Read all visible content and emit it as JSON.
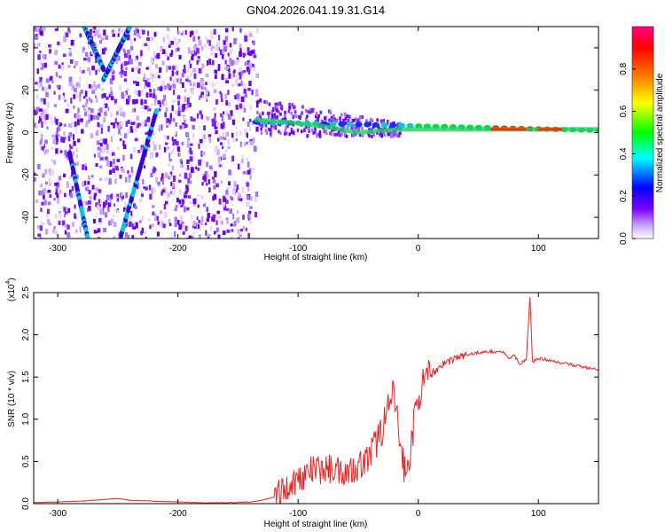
{
  "figure_title": "GN04.2026.041.19.31.G14",
  "chart_data": [
    {
      "type": "heatmap",
      "title": "GN04.2026.041.19.31.G14",
      "xlabel": "Height of straight line (km)",
      "ylabel": "Frequency (Hz)",
      "xlim": [
        -320,
        150
      ],
      "ylim": [
        -50,
        50
      ],
      "xticks": [
        -300,
        -200,
        -100,
        0,
        100
      ],
      "yticks": [
        -40,
        -20,
        0,
        20,
        40
      ],
      "colorbar": {
        "label": "Normalized spectral amplitude",
        "range": [
          0,
          1
        ],
        "ticks": [
          0.0,
          0.2,
          0.4,
          0.6,
          0.8
        ],
        "colors": [
          "#ffffff",
          "#7f00ff",
          "#0000ff",
          "#00ffff",
          "#00ff00",
          "#ffff00",
          "#ff8000",
          "#ff0000",
          "#ff0080"
        ]
      },
      "features": [
        {
          "name": "descending streak",
          "x": [
            -278,
            -262
          ],
          "y": [
            50,
            30
          ]
        },
        {
          "name": "descending streak",
          "x": [
            -290,
            -275
          ],
          "y": [
            -10,
            -50
          ]
        },
        {
          "name": "ascending streak",
          "x": [
            -248,
            -218
          ],
          "y": [
            -50,
            10
          ]
        },
        {
          "name": "ascending streak",
          "x": [
            -262,
            -240
          ],
          "y": [
            25,
            50
          ]
        },
        {
          "name": "noise edge",
          "x": [
            -135,
            -135
          ],
          "y": [
            -50,
            50
          ]
        },
        {
          "name": "signal ridge",
          "x": [
            -135,
            150
          ],
          "y": [
            5,
            1
          ]
        }
      ]
    },
    {
      "type": "line",
      "xlabel": "Height of straight line (km)",
      "ylabel": "SNR (10 * v/v)",
      "y_multiplier": "(x10",
      "y_multiplier_exp": "4",
      "xlim": [
        -320,
        150
      ],
      "ylim": [
        0,
        2.5
      ],
      "xticks": [
        -300,
        -200,
        -100,
        0,
        100
      ],
      "yticks": [
        0.0,
        0.5,
        1.0,
        1.5,
        2.0,
        2.5
      ],
      "color": "#ee2222",
      "x": [
        -320,
        -300,
        -280,
        -260,
        -250,
        -240,
        -220,
        -200,
        -180,
        -160,
        -140,
        -130,
        -120,
        -110,
        -100,
        -90,
        -80,
        -70,
        -60,
        -50,
        -40,
        -30,
        -25,
        -20,
        -15,
        -10,
        -5,
        0,
        10,
        20,
        30,
        40,
        50,
        60,
        70,
        75,
        80,
        85,
        90,
        93,
        95,
        100,
        110,
        120,
        130,
        140,
        150
      ],
      "y": [
        0.01,
        0.02,
        0.03,
        0.05,
        0.06,
        0.04,
        0.03,
        0.02,
        0.01,
        0.01,
        0.02,
        0.04,
        0.08,
        0.18,
        0.3,
        0.38,
        0.4,
        0.42,
        0.38,
        0.45,
        0.55,
        0.9,
        1.1,
        1.3,
        0.7,
        0.3,
        0.8,
        1.3,
        1.52,
        1.65,
        1.72,
        1.76,
        1.79,
        1.8,
        1.8,
        1.72,
        1.75,
        1.65,
        1.72,
        2.45,
        1.68,
        1.72,
        1.7,
        1.66,
        1.64,
        1.61,
        1.58
      ]
    }
  ]
}
